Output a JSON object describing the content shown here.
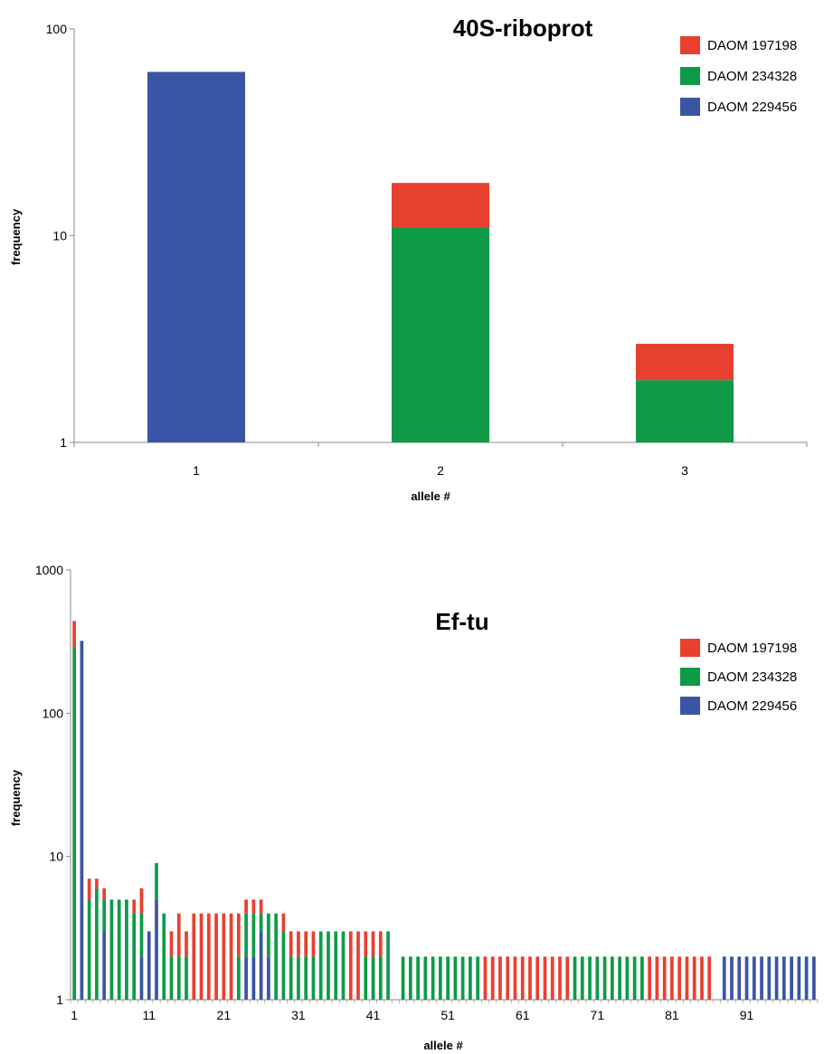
{
  "chart_data": [
    {
      "type": "bar",
      "stacked": true,
      "title": "40S-riboprot",
      "xlabel": "allele #",
      "ylabel": "frequency",
      "yscale": "log",
      "ylim": [
        1,
        100
      ],
      "yticks": [
        "1",
        "10",
        "100"
      ],
      "categories": [
        "1",
        "2",
        "3"
      ],
      "legend": {
        "position": "top-right"
      },
      "series": [
        {
          "name": "DAOM 197198",
          "color": "#e8402f",
          "values": [
            0,
            7,
            1
          ]
        },
        {
          "name": "DAOM 234328",
          "color": "#0f9a48",
          "values": [
            0,
            11,
            2
          ]
        },
        {
          "name": "DAOM 229456",
          "color": "#3a55a6",
          "values": [
            62,
            0,
            0
          ]
        }
      ]
    },
    {
      "type": "bar",
      "stacked": true,
      "title": "Ef-tu",
      "xlabel": "allele #",
      "ylabel": "frequency",
      "yscale": "log",
      "ylim": [
        1,
        1000
      ],
      "yticks": [
        "1",
        "10",
        "100",
        "1000"
      ],
      "xtick_labels": [
        "1",
        "11",
        "21",
        "31",
        "41",
        "51",
        "61",
        "71",
        "81",
        "91"
      ],
      "alleles": 100,
      "legend": {
        "position": "top-right"
      },
      "series": [
        {
          "name": "DAOM 197198",
          "color": "#e8402f",
          "values": [
            150,
            0,
            2,
            1,
            1,
            0,
            0,
            0,
            1,
            2,
            0,
            0,
            0,
            1,
            2,
            1,
            4,
            4,
            4,
            4,
            4,
            4,
            2,
            1,
            1,
            1,
            0,
            0,
            1,
            1,
            1,
            1,
            1,
            0,
            0,
            0,
            0,
            3,
            3,
            1,
            1,
            1,
            0,
            0,
            0,
            0,
            0,
            0,
            0,
            0,
            0,
            0,
            0,
            0,
            0,
            2,
            2,
            2,
            2,
            2,
            2,
            2,
            2,
            2,
            2,
            2,
            2,
            0,
            0,
            0,
            0,
            0,
            0,
            0,
            0,
            0,
            0,
            2,
            2,
            2,
            2,
            2,
            2,
            2,
            2,
            2,
            0,
            0,
            0,
            0,
            0,
            0,
            0,
            0,
            0,
            0,
            0,
            0,
            0,
            0
          ]
        },
        {
          "name": "DAOM 234328",
          "color": "#0f9a48",
          "values": [
            290,
            0,
            5,
            6,
            2,
            5,
            5,
            5,
            4,
            2,
            0,
            4,
            4,
            2,
            2,
            2,
            0,
            0,
            0,
            0,
            0,
            0,
            2,
            2,
            2,
            1,
            2,
            4,
            3,
            2,
            2,
            2,
            2,
            3,
            3,
            3,
            3,
            0,
            0,
            2,
            2,
            2,
            3,
            0,
            2,
            2,
            2,
            2,
            2,
            2,
            2,
            2,
            2,
            2,
            2,
            0,
            0,
            0,
            0,
            0,
            0,
            0,
            0,
            0,
            0,
            0,
            0,
            2,
            2,
            2,
            2,
            2,
            2,
            2,
            2,
            2,
            2,
            0,
            0,
            0,
            0,
            0,
            0,
            0,
            0,
            0,
            0,
            0,
            0,
            0,
            0,
            0,
            0,
            0,
            0,
            0,
            0,
            0,
            0,
            0
          ]
        },
        {
          "name": "DAOM 229456",
          "color": "#3a55a6",
          "values": [
            0,
            320,
            0,
            0,
            3,
            0,
            0,
            0,
            0,
            2,
            3,
            5,
            0,
            0,
            0,
            0,
            0,
            0,
            0,
            0,
            0,
            0,
            0,
            2,
            2,
            3,
            2,
            0,
            0,
            0,
            0,
            0,
            0,
            0,
            0,
            0,
            0,
            0,
            0,
            0,
            0,
            0,
            0,
            0,
            0,
            0,
            0,
            0,
            0,
            0,
            0,
            0,
            0,
            0,
            0,
            0,
            0,
            0,
            0,
            0,
            0,
            0,
            0,
            0,
            0,
            0,
            0,
            0,
            0,
            0,
            0,
            0,
            0,
            0,
            0,
            0,
            0,
            0,
            0,
            0,
            0,
            0,
            0,
            0,
            0,
            0,
            0,
            2,
            2,
            2,
            2,
            2,
            2,
            2,
            2,
            2,
            2,
            2,
            2,
            2
          ]
        }
      ]
    }
  ]
}
